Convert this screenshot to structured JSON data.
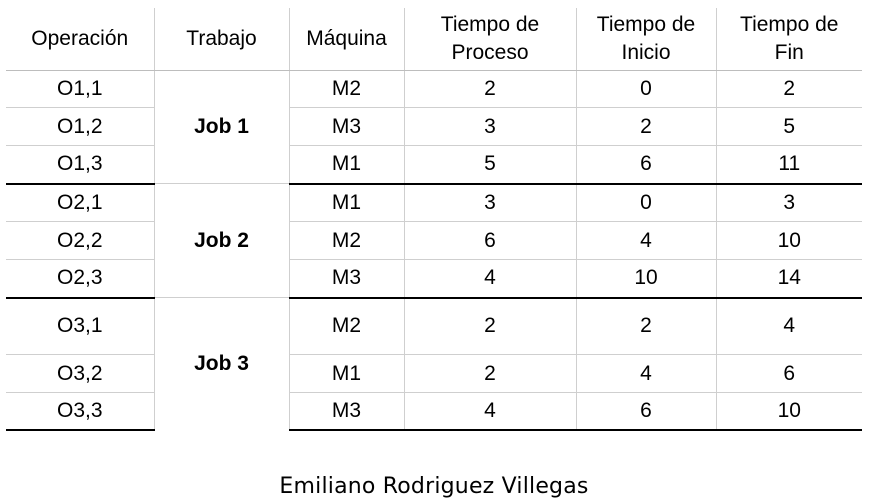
{
  "headers": {
    "operation": "Operación",
    "job": "Trabajo",
    "machine": "Máquina",
    "process_time": [
      "Tiempo de",
      "Proceso"
    ],
    "start_time": [
      "Tiempo de",
      "Inicio"
    ],
    "end_time": [
      "Tiempo de",
      "Fin"
    ]
  },
  "jobs": [
    {
      "name": "Job 1",
      "operations": [
        {
          "op": "O1,1",
          "machine": "M2",
          "process": "2",
          "start": "0",
          "end": "2"
        },
        {
          "op": "O1,2",
          "machine": "M3",
          "process": "3",
          "start": "2",
          "end": "5"
        },
        {
          "op": "O1,3",
          "machine": "M1",
          "process": "5",
          "start": "6",
          "end": "11"
        }
      ]
    },
    {
      "name": "Job 2",
      "operations": [
        {
          "op": "O2,1",
          "machine": "M1",
          "process": "3",
          "start": "0",
          "end": "3"
        },
        {
          "op": "O2,2",
          "machine": "M2",
          "process": "6",
          "start": "4",
          "end": "10"
        },
        {
          "op": "O2,3",
          "machine": "M3",
          "process": "4",
          "start": "10",
          "end": "14"
        }
      ]
    },
    {
      "name": "Job 3",
      "operations": [
        {
          "op": "O3,1",
          "machine": "M2",
          "process": "2",
          "start": "2",
          "end": "4"
        },
        {
          "op": "O3,2",
          "machine": "M1",
          "process": "2",
          "start": "4",
          "end": "6"
        },
        {
          "op": "O3,3",
          "machine": "M3",
          "process": "4",
          "start": "6",
          "end": "10"
        }
      ]
    }
  ],
  "author": "Emiliano Rodriguez Villegas"
}
